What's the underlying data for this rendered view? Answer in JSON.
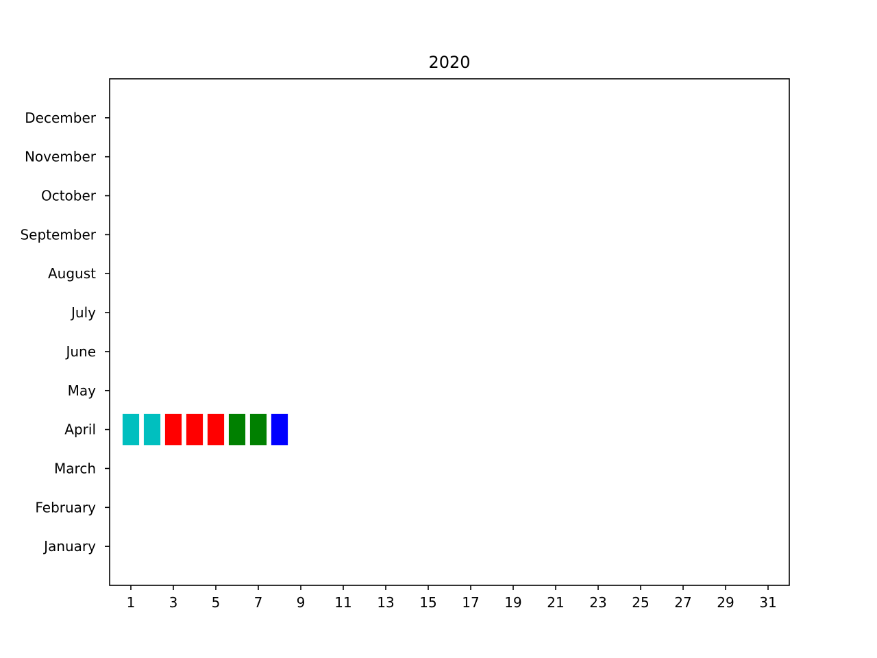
{
  "chart_data": {
    "type": "heatmap",
    "title": "2020",
    "xlabel": "",
    "ylabel": "",
    "x_tick_labels": [
      "1",
      "3",
      "5",
      "7",
      "9",
      "11",
      "13",
      "15",
      "17",
      "19",
      "21",
      "23",
      "25",
      "27",
      "29",
      "31"
    ],
    "x_ticks": [
      1,
      3,
      5,
      7,
      9,
      11,
      13,
      15,
      17,
      19,
      21,
      23,
      25,
      27,
      29,
      31
    ],
    "xlim": [
      0,
      32
    ],
    "y_categories": [
      "January",
      "February",
      "March",
      "April",
      "May",
      "June",
      "July",
      "August",
      "September",
      "October",
      "November",
      "December"
    ],
    "grid": false,
    "points": [
      {
        "day": 1,
        "month": "April",
        "color": "#00bfbf"
      },
      {
        "day": 2,
        "month": "April",
        "color": "#00bfbf"
      },
      {
        "day": 3,
        "month": "April",
        "color": "#ff0000"
      },
      {
        "day": 4,
        "month": "April",
        "color": "#ff0000"
      },
      {
        "day": 5,
        "month": "April",
        "color": "#ff0000"
      },
      {
        "day": 6,
        "month": "April",
        "color": "#008000"
      },
      {
        "day": 7,
        "month": "April",
        "color": "#008000"
      },
      {
        "day": 8,
        "month": "April",
        "color": "#0000ff"
      }
    ]
  }
}
